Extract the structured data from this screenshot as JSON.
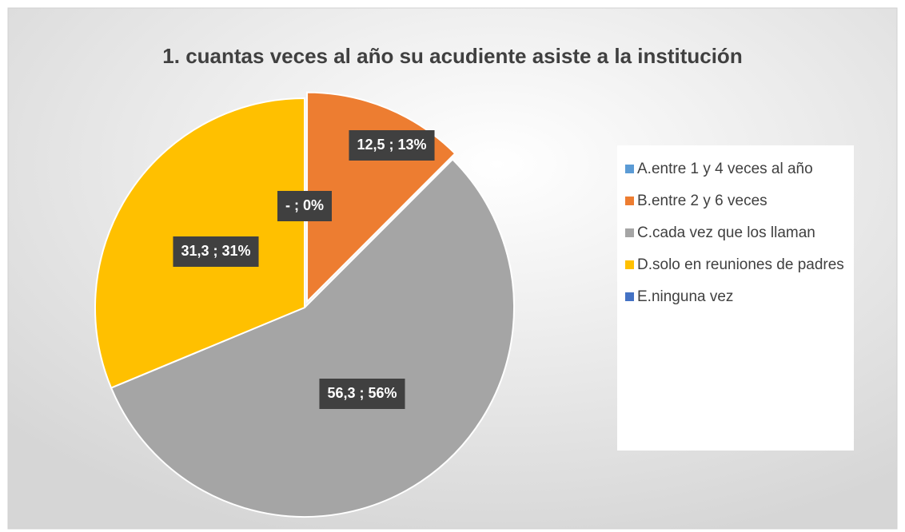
{
  "chart_data": {
    "type": "pie",
    "title": "1. cuantas veces al año su acudiente asiste a la institución",
    "categories": [
      "A.entre 1 y 4 veces al año",
      "B.entre 2 y 6 veces",
      "C.cada vez que los llaman",
      "D.solo en reuniones de padres",
      "E.ninguna vez"
    ],
    "values": [
      0,
      12.5,
      56.3,
      31.3,
      0
    ],
    "value_labels": [
      "- ; 0%",
      "12,5 ; 13%",
      "56,3 ; 56%",
      "31,3 ; 31%",
      null
    ],
    "colors": [
      "#5b9bd5",
      "#ed7d31",
      "#a5a5a5",
      "#ffc000",
      "#4472c4"
    ],
    "legend": "right"
  }
}
